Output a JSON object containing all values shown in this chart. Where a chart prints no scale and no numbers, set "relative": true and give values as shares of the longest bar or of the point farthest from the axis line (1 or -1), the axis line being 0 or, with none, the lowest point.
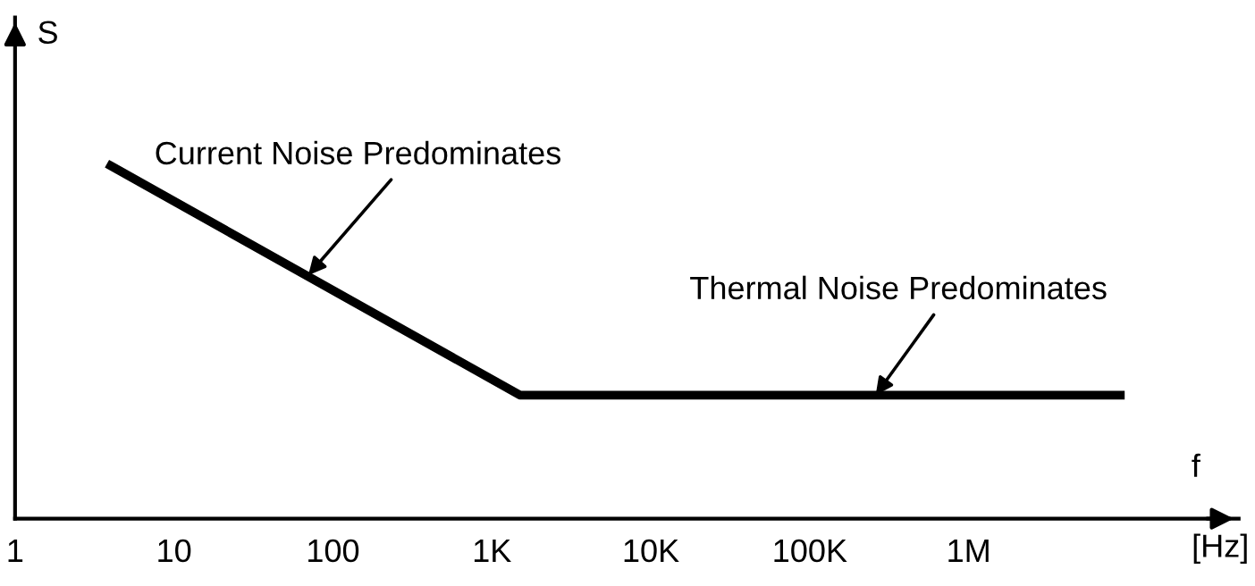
{
  "chart_data": {
    "type": "line",
    "relative": true,
    "xlabel": "f",
    "ylabel": "S",
    "log": "x",
    "xlim": [
      1,
      50000000
    ],
    "xticks": [
      1,
      10,
      100,
      {
        "value": 1000,
        "label": "1K"
      },
      {
        "value": 10000,
        "label": "10K"
      },
      {
        "value": 100000,
        "label": "100K"
      },
      {
        "value": 1000000,
        "label": "1M"
      }
    ],
    "x": [
      4,
      1500,
      9000000
    ],
    "series": [
      {
        "color": "#000000",
        "values": [
          1,
          0.35,
          0.35
        ]
      }
    ],
    "annotations": [
      {
        "text": "Current Noise Predominates",
        "x": 70,
        "y": 0.69
      },
      {
        "text": "Thermal Noise Predominates",
        "x": 260000,
        "y": 0.35
      },
      "[Hz]"
    ],
    "tick_labels": "x",
    "grid": false,
    "legend": false,
    "marker": "none",
    "line_style": "solid"
  }
}
